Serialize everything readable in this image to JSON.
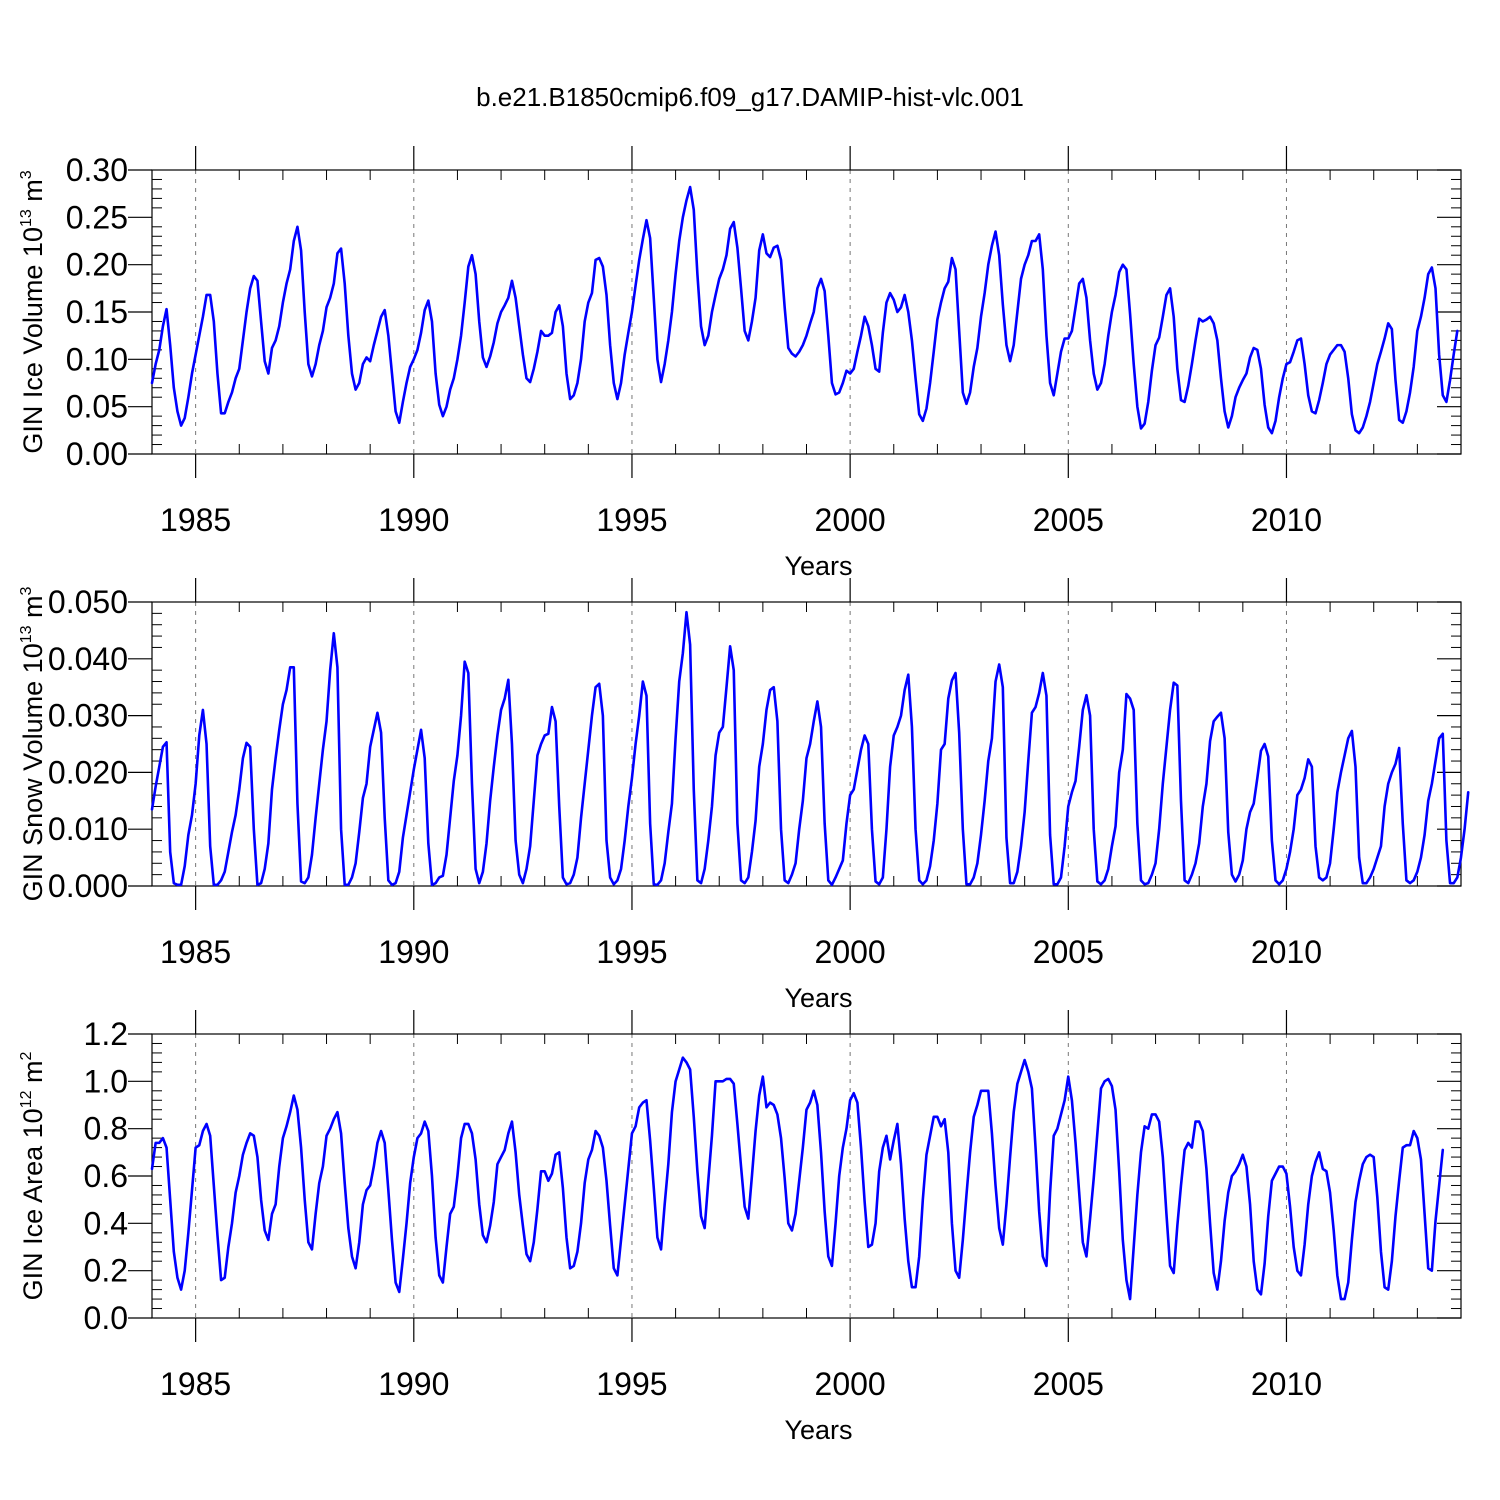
{
  "title": "b.e21.B1850cmip6.f09_g17.DAMIP-hist-vlc.001",
  "colors": {
    "line": "#0000ff",
    "axis": "#000000",
    "grid": "#777777"
  },
  "chart_data": [
    {
      "type": "line",
      "name": "ice-volume",
      "ylabel_parts": [
        "GIN Ice Volume 10",
        "13",
        " m",
        "3"
      ],
      "xlabel": "Years",
      "xlim": [
        1984.0,
        2014.0
      ],
      "ylim": [
        0.0,
        0.3
      ],
      "xticks": [
        1985,
        1990,
        1995,
        2000,
        2005,
        2010
      ],
      "yticks": [
        0.0,
        0.05,
        0.1,
        0.15,
        0.2,
        0.25,
        0.3
      ],
      "ytick_labels": [
        "0.00",
        "0.05",
        "0.10",
        "0.15",
        "0.20",
        "0.25",
        "0.30"
      ],
      "start_year": 1984.0,
      "step": 0.08333,
      "values": [
        0.075,
        0.095,
        0.11,
        0.135,
        0.153,
        0.115,
        0.07,
        0.045,
        0.03,
        0.038,
        0.06,
        0.085,
        0.105,
        0.125,
        0.145,
        0.168,
        0.168,
        0.14,
        0.085,
        0.043,
        0.043,
        0.055,
        0.065,
        0.08,
        0.09,
        0.12,
        0.15,
        0.175,
        0.188,
        0.183,
        0.14,
        0.098,
        0.085,
        0.112,
        0.12,
        0.135,
        0.16,
        0.18,
        0.195,
        0.225,
        0.24,
        0.215,
        0.15,
        0.095,
        0.082,
        0.095,
        0.115,
        0.13,
        0.155,
        0.165,
        0.18,
        0.212,
        0.217,
        0.18,
        0.125,
        0.085,
        0.068,
        0.075,
        0.095,
        0.102,
        0.098,
        0.115,
        0.13,
        0.145,
        0.152,
        0.125,
        0.085,
        0.045,
        0.033,
        0.055,
        0.075,
        0.092,
        0.1,
        0.11,
        0.128,
        0.152,
        0.162,
        0.14,
        0.085,
        0.052,
        0.04,
        0.05,
        0.068,
        0.08,
        0.1,
        0.125,
        0.16,
        0.198,
        0.21,
        0.19,
        0.14,
        0.102,
        0.092,
        0.103,
        0.118,
        0.138,
        0.15,
        0.157,
        0.165,
        0.183,
        0.165,
        0.135,
        0.105,
        0.08,
        0.076,
        0.09,
        0.108,
        0.13,
        0.125,
        0.125,
        0.128,
        0.15,
        0.157,
        0.135,
        0.085,
        0.058,
        0.062,
        0.075,
        0.1,
        0.14,
        0.16,
        0.17,
        0.205,
        0.207,
        0.198,
        0.168,
        0.115,
        0.075,
        0.058,
        0.075,
        0.105,
        0.128,
        0.15,
        0.178,
        0.205,
        0.227,
        0.247,
        0.228,
        0.165,
        0.1,
        0.076,
        0.095,
        0.12,
        0.15,
        0.19,
        0.225,
        0.25,
        0.268,
        0.282,
        0.258,
        0.19,
        0.135,
        0.115,
        0.125,
        0.15,
        0.168,
        0.185,
        0.195,
        0.21,
        0.238,
        0.245,
        0.218,
        0.175,
        0.13,
        0.12,
        0.14,
        0.165,
        0.215,
        0.232,
        0.212,
        0.208,
        0.218,
        0.22,
        0.205,
        0.155,
        0.112,
        0.106,
        0.103,
        0.108,
        0.115,
        0.125,
        0.138,
        0.15,
        0.175,
        0.185,
        0.172,
        0.125,
        0.075,
        0.063,
        0.065,
        0.075,
        0.088,
        0.085,
        0.09,
        0.108,
        0.125,
        0.145,
        0.135,
        0.115,
        0.09,
        0.087,
        0.128,
        0.16,
        0.17,
        0.163,
        0.15,
        0.155,
        0.168,
        0.15,
        0.12,
        0.08,
        0.042,
        0.035,
        0.048,
        0.075,
        0.108,
        0.142,
        0.16,
        0.175,
        0.182,
        0.207,
        0.195,
        0.13,
        0.065,
        0.053,
        0.065,
        0.092,
        0.112,
        0.145,
        0.17,
        0.2,
        0.22,
        0.235,
        0.21,
        0.158,
        0.115,
        0.098,
        0.115,
        0.15,
        0.185,
        0.2,
        0.21,
        0.225,
        0.225,
        0.232,
        0.195,
        0.125,
        0.075,
        0.062,
        0.085,
        0.108,
        0.122,
        0.122,
        0.13,
        0.155,
        0.18,
        0.185,
        0.165,
        0.12,
        0.085,
        0.068,
        0.075,
        0.095,
        0.125,
        0.15,
        0.168,
        0.192,
        0.2,
        0.195,
        0.148,
        0.095,
        0.05,
        0.027,
        0.032,
        0.055,
        0.088,
        0.115,
        0.123,
        0.145,
        0.168,
        0.175,
        0.145,
        0.09,
        0.057,
        0.055,
        0.072,
        0.095,
        0.12,
        0.143,
        0.14,
        0.142,
        0.145,
        0.138,
        0.12,
        0.08,
        0.045,
        0.028,
        0.04,
        0.06,
        0.07,
        0.078,
        0.085,
        0.102,
        0.112,
        0.11,
        0.09,
        0.052,
        0.028,
        0.022,
        0.035,
        0.06,
        0.08,
        0.095,
        0.097,
        0.108,
        0.12,
        0.122,
        0.095,
        0.062,
        0.045,
        0.043,
        0.057,
        0.075,
        0.095,
        0.105,
        0.11,
        0.115,
        0.115,
        0.108,
        0.08,
        0.042,
        0.025,
        0.022,
        0.028,
        0.04,
        0.055,
        0.075,
        0.095,
        0.108,
        0.122,
        0.138,
        0.132,
        0.078,
        0.036,
        0.033,
        0.045,
        0.065,
        0.092,
        0.13,
        0.145,
        0.165,
        0.19,
        0.197,
        0.175,
        0.105,
        0.062,
        0.055,
        0.078,
        0.105,
        0.13
      ]
    },
    {
      "type": "line",
      "name": "snow-volume",
      "ylabel_parts": [
        "GIN Snow Volume 10",
        "13",
        " m",
        "3"
      ],
      "xlabel": "Years",
      "xlim": [
        1984.0,
        2014.0
      ],
      "ylim": [
        0.0,
        0.05
      ],
      "xticks": [
        1985,
        1990,
        1995,
        2000,
        2005,
        2010
      ],
      "yticks": [
        0.0,
        0.01,
        0.02,
        0.03,
        0.04,
        0.05
      ],
      "ytick_labels": [
        "0.000",
        "0.010",
        "0.020",
        "0.030",
        "0.040",
        "0.050"
      ],
      "start_year": 1984.0,
      "step": 0.08333,
      "values": [
        0.0135,
        0.0175,
        0.021,
        0.0245,
        0.0253,
        0.006,
        0.0005,
        0.0002,
        0.0002,
        0.0035,
        0.009,
        0.0125,
        0.018,
        0.0265,
        0.031,
        0.025,
        0.007,
        0.0002,
        0.0002,
        0.001,
        0.0025,
        0.006,
        0.0095,
        0.0125,
        0.017,
        0.0225,
        0.0252,
        0.0245,
        0.01,
        0.0002,
        0.0005,
        0.003,
        0.0075,
        0.017,
        0.0225,
        0.0275,
        0.032,
        0.0345,
        0.0385,
        0.0385,
        0.0145,
        0.0008,
        0.0005,
        0.0015,
        0.0055,
        0.012,
        0.018,
        0.024,
        0.029,
        0.038,
        0.0445,
        0.0385,
        0.01,
        0.0002,
        0.0002,
        0.0015,
        0.004,
        0.0095,
        0.0155,
        0.018,
        0.0245,
        0.0275,
        0.0305,
        0.027,
        0.012,
        0.001,
        0.0002,
        0.0005,
        0.0025,
        0.0085,
        0.0125,
        0.0165,
        0.0205,
        0.024,
        0.0275,
        0.0225,
        0.0075,
        0.0002,
        0.0005,
        0.0015,
        0.0018,
        0.0055,
        0.012,
        0.0185,
        0.023,
        0.03,
        0.0395,
        0.0375,
        0.018,
        0.003,
        0.0005,
        0.0025,
        0.0075,
        0.015,
        0.021,
        0.0265,
        0.031,
        0.033,
        0.0363,
        0.025,
        0.008,
        0.002,
        0.0005,
        0.003,
        0.007,
        0.015,
        0.023,
        0.025,
        0.0265,
        0.0268,
        0.0315,
        0.029,
        0.014,
        0.0015,
        0.0003,
        0.0005,
        0.002,
        0.005,
        0.012,
        0.018,
        0.024,
        0.03,
        0.035,
        0.0356,
        0.03,
        0.008,
        0.0015,
        0.0003,
        0.001,
        0.003,
        0.008,
        0.014,
        0.019,
        0.025,
        0.03,
        0.036,
        0.0335,
        0.011,
        0.0003,
        0.0002,
        0.001,
        0.004,
        0.0095,
        0.0145,
        0.026,
        0.036,
        0.041,
        0.0482,
        0.0425,
        0.017,
        0.001,
        0.0005,
        0.003,
        0.008,
        0.014,
        0.023,
        0.027,
        0.028,
        0.035,
        0.0422,
        0.038,
        0.011,
        0.001,
        0.0005,
        0.0015,
        0.006,
        0.0115,
        0.021,
        0.025,
        0.031,
        0.0345,
        0.035,
        0.029,
        0.01,
        0.001,
        0.0005,
        0.002,
        0.004,
        0.01,
        0.015,
        0.0225,
        0.025,
        0.029,
        0.0325,
        0.028,
        0.011,
        0.001,
        0.0002,
        0.0015,
        0.003,
        0.0045,
        0.011,
        0.016,
        0.017,
        0.0205,
        0.024,
        0.0265,
        0.025,
        0.01,
        0.0008,
        0.0003,
        0.0015,
        0.01,
        0.021,
        0.0265,
        0.028,
        0.03,
        0.0345,
        0.0372,
        0.028,
        0.01,
        0.001,
        0.0003,
        0.001,
        0.0035,
        0.008,
        0.0145,
        0.024,
        0.025,
        0.033,
        0.0362,
        0.0375,
        0.027,
        0.01,
        0.0003,
        0.0003,
        0.0015,
        0.004,
        0.009,
        0.015,
        0.022,
        0.026,
        0.036,
        0.039,
        0.035,
        0.0085,
        0.0005,
        0.0005,
        0.0025,
        0.007,
        0.013,
        0.022,
        0.0305,
        0.0315,
        0.034,
        0.0375,
        0.0335,
        0.009,
        0.0003,
        0.0003,
        0.0015,
        0.007,
        0.014,
        0.0165,
        0.0185,
        0.0245,
        0.031,
        0.0336,
        0.03,
        0.01,
        0.0008,
        0.0003,
        0.001,
        0.003,
        0.007,
        0.0105,
        0.02,
        0.024,
        0.0338,
        0.033,
        0.031,
        0.011,
        0.001,
        0.0003,
        0.0005,
        0.002,
        0.004,
        0.01,
        0.018,
        0.0245,
        0.031,
        0.0358,
        0.0353,
        0.015,
        0.001,
        0.0005,
        0.002,
        0.004,
        0.0075,
        0.014,
        0.018,
        0.0255,
        0.029,
        0.0298,
        0.0305,
        0.026,
        0.0095,
        0.002,
        0.0008,
        0.002,
        0.0045,
        0.01,
        0.013,
        0.0145,
        0.019,
        0.0238,
        0.025,
        0.0228,
        0.008,
        0.001,
        0.0003,
        0.001,
        0.003,
        0.006,
        0.01,
        0.016,
        0.017,
        0.019,
        0.0223,
        0.021,
        0.007,
        0.0015,
        0.001,
        0.0015,
        0.004,
        0.01,
        0.0165,
        0.02,
        0.023,
        0.026,
        0.0273,
        0.021,
        0.005,
        0.0005,
        0.0005,
        0.0015,
        0.003,
        0.005,
        0.007,
        0.014,
        0.018,
        0.02,
        0.0215,
        0.0243,
        0.011,
        0.001,
        0.0005,
        0.001,
        0.0025,
        0.005,
        0.009,
        0.015,
        0.018,
        0.022,
        0.026,
        0.0268,
        0.008,
        0.0005,
        0.0005,
        0.0015,
        0.005,
        0.01,
        0.0165
      ]
    },
    {
      "type": "line",
      "name": "ice-area",
      "ylabel_parts": [
        "GIN Ice Area 10",
        "12",
        " m",
        "2"
      ],
      "xlabel": "Years",
      "xlim": [
        1984.0,
        2014.0
      ],
      "ylim": [
        0.0,
        1.2
      ],
      "xticks": [
        1985,
        1990,
        1995,
        2000,
        2005,
        2010
      ],
      "yticks": [
        0.0,
        0.2,
        0.4,
        0.6,
        0.8,
        1.0,
        1.2
      ],
      "ytick_labels": [
        "0.0",
        "0.2",
        "0.4",
        "0.6",
        "0.8",
        "1.0",
        "1.2"
      ],
      "start_year": 1984.0,
      "step": 0.08333,
      "values": [
        0.63,
        0.74,
        0.74,
        0.76,
        0.72,
        0.5,
        0.28,
        0.17,
        0.12,
        0.2,
        0.36,
        0.54,
        0.72,
        0.73,
        0.79,
        0.82,
        0.77,
        0.56,
        0.35,
        0.16,
        0.17,
        0.3,
        0.4,
        0.53,
        0.6,
        0.69,
        0.74,
        0.78,
        0.77,
        0.68,
        0.5,
        0.37,
        0.33,
        0.44,
        0.48,
        0.64,
        0.76,
        0.81,
        0.87,
        0.94,
        0.88,
        0.72,
        0.5,
        0.32,
        0.29,
        0.44,
        0.57,
        0.64,
        0.77,
        0.8,
        0.84,
        0.87,
        0.78,
        0.57,
        0.38,
        0.26,
        0.21,
        0.32,
        0.48,
        0.54,
        0.56,
        0.64,
        0.74,
        0.79,
        0.74,
        0.54,
        0.33,
        0.15,
        0.11,
        0.25,
        0.4,
        0.57,
        0.68,
        0.76,
        0.78,
        0.83,
        0.79,
        0.6,
        0.34,
        0.18,
        0.15,
        0.3,
        0.44,
        0.47,
        0.6,
        0.76,
        0.82,
        0.82,
        0.78,
        0.67,
        0.48,
        0.35,
        0.32,
        0.39,
        0.49,
        0.65,
        0.68,
        0.71,
        0.78,
        0.83,
        0.7,
        0.52,
        0.39,
        0.27,
        0.24,
        0.32,
        0.46,
        0.62,
        0.62,
        0.58,
        0.61,
        0.69,
        0.7,
        0.55,
        0.34,
        0.21,
        0.22,
        0.28,
        0.4,
        0.57,
        0.67,
        0.71,
        0.79,
        0.77,
        0.72,
        0.58,
        0.39,
        0.21,
        0.18,
        0.33,
        0.48,
        0.63,
        0.78,
        0.81,
        0.89,
        0.91,
        0.92,
        0.75,
        0.55,
        0.34,
        0.29,
        0.48,
        0.65,
        0.87,
        1.0,
        1.05,
        1.1,
        1.08,
        1.05,
        0.85,
        0.62,
        0.43,
        0.38,
        0.58,
        0.77,
        1.0,
        1.0,
        1.0,
        1.01,
        1.01,
        0.99,
        0.82,
        0.64,
        0.47,
        0.42,
        0.6,
        0.79,
        0.94,
        1.02,
        0.89,
        0.91,
        0.9,
        0.86,
        0.76,
        0.59,
        0.4,
        0.37,
        0.44,
        0.58,
        0.72,
        0.88,
        0.91,
        0.96,
        0.9,
        0.7,
        0.45,
        0.26,
        0.22,
        0.4,
        0.6,
        0.72,
        0.8,
        0.92,
        0.95,
        0.91,
        0.72,
        0.49,
        0.3,
        0.31,
        0.4,
        0.62,
        0.72,
        0.77,
        0.67,
        0.75,
        0.82,
        0.65,
        0.42,
        0.24,
        0.13,
        0.13,
        0.26,
        0.5,
        0.69,
        0.77,
        0.85,
        0.85,
        0.81,
        0.84,
        0.7,
        0.4,
        0.2,
        0.17,
        0.33,
        0.52,
        0.7,
        0.85,
        0.9,
        0.96,
        0.96,
        0.96,
        0.78,
        0.56,
        0.38,
        0.31,
        0.48,
        0.68,
        0.87,
        0.99,
        1.04,
        1.09,
        1.04,
        0.97,
        0.72,
        0.45,
        0.26,
        0.22,
        0.53,
        0.77,
        0.8,
        0.86,
        0.92,
        1.02,
        0.92,
        0.74,
        0.53,
        0.32,
        0.26,
        0.42,
        0.59,
        0.78,
        0.97,
        1.0,
        1.01,
        0.98,
        0.88,
        0.62,
        0.33,
        0.16,
        0.08,
        0.3,
        0.52,
        0.7,
        0.81,
        0.8,
        0.86,
        0.86,
        0.83,
        0.68,
        0.44,
        0.22,
        0.19,
        0.39,
        0.56,
        0.71,
        0.74,
        0.72,
        0.83,
        0.83,
        0.79,
        0.63,
        0.4,
        0.19,
        0.12,
        0.24,
        0.41,
        0.53,
        0.6,
        0.62,
        0.65,
        0.69,
        0.64,
        0.48,
        0.24,
        0.12,
        0.1,
        0.23,
        0.43,
        0.58,
        0.61,
        0.64,
        0.64,
        0.61,
        0.47,
        0.3,
        0.2,
        0.18,
        0.31,
        0.48,
        0.6,
        0.66,
        0.7,
        0.63,
        0.62,
        0.53,
        0.37,
        0.18,
        0.08,
        0.08,
        0.15,
        0.33,
        0.49,
        0.58,
        0.65,
        0.68,
        0.69,
        0.68,
        0.51,
        0.28,
        0.13,
        0.12,
        0.24,
        0.43,
        0.58,
        0.72,
        0.73,
        0.73,
        0.79,
        0.76,
        0.67,
        0.44,
        0.21,
        0.2,
        0.41,
        0.56,
        0.71
      ]
    }
  ]
}
